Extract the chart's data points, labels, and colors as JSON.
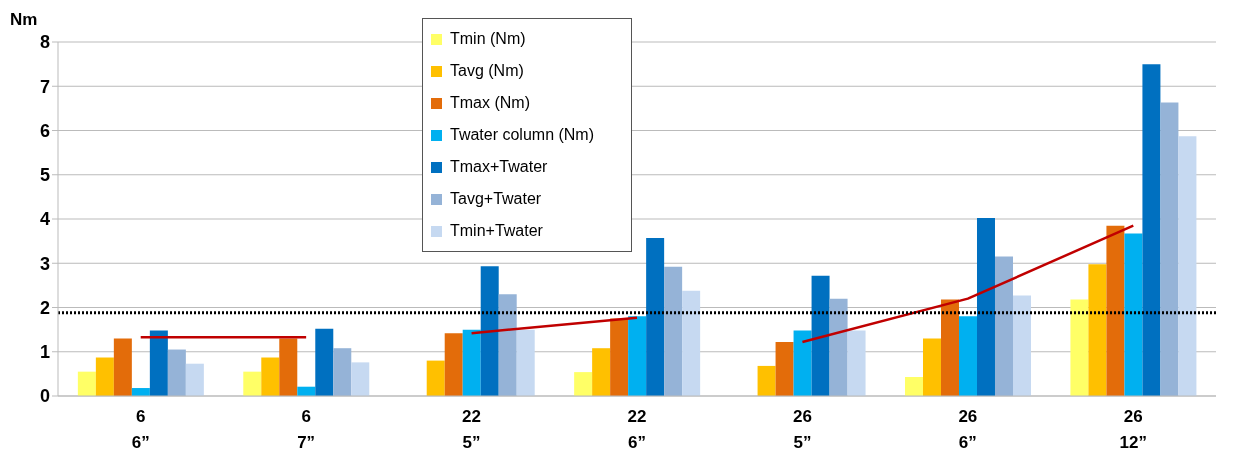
{
  "chart_data": {
    "type": "bar",
    "ylabel": "Nm",
    "categories": [
      "6\n6”",
      "6\n7”",
      "22\n5”",
      "22\n6”",
      "26\n5”",
      "26\n6”",
      "26\n12”"
    ],
    "series": [
      {
        "name": "Tmin (Nm)",
        "color": "#ffff66",
        "values": [
          0.55,
          0.55,
          null,
          0.54,
          null,
          0.43,
          2.18
        ]
      },
      {
        "name": "Tavg (Nm)",
        "color": "#ffc000",
        "values": [
          0.87,
          0.87,
          0.8,
          1.08,
          0.68,
          1.3,
          2.98
        ]
      },
      {
        "name": "Tmax (Nm)",
        "color": "#e36c0a",
        "values": [
          1.3,
          1.3,
          1.42,
          1.75,
          1.22,
          2.18,
          3.85
        ]
      },
      {
        "name": "Twater column (Nm)",
        "color": "#00b0f0",
        "values": [
          0.18,
          0.21,
          1.5,
          1.8,
          1.48,
          1.8,
          3.67
        ]
      },
      {
        "name": "Tmax+Twater",
        "color": "#0070c0",
        "values": [
          1.48,
          1.52,
          2.93,
          3.57,
          2.72,
          4.02,
          7.5
        ]
      },
      {
        "name": "Tavg+Twater",
        "color": "#95b3d7",
        "values": [
          1.05,
          1.08,
          2.3,
          2.92,
          2.2,
          3.15,
          6.63
        ]
      },
      {
        "name": "Tmin+Twater",
        "color": "#c6d9f1",
        "values": [
          0.73,
          0.76,
          1.5,
          2.38,
          1.48,
          2.27,
          5.87
        ]
      },
      {
        "type": "line",
        "color": "#c00000",
        "values": [
          1.33,
          1.33,
          null,
          null,
          null,
          null,
          null
        ]
      },
      {
        "type": "line",
        "color": "#c00000",
        "values": [
          null,
          null,
          1.42,
          1.77,
          null,
          null,
          null
        ]
      },
      {
        "type": "line",
        "color": "#c00000",
        "values": [
          null,
          null,
          null,
          null,
          1.22,
          2.2,
          3.85
        ]
      }
    ],
    "ylim": [
      0,
      8
    ],
    "yticks": [
      0,
      1,
      2,
      3,
      4,
      5,
      6,
      7,
      8
    ],
    "grid": "y",
    "legend": "top",
    "marker": "none",
    "line_style": "solid",
    "ref_lines": [
      {
        "axis": "y",
        "value": 1.88,
        "color": "#000000",
        "line_style": "dotted"
      }
    ]
  }
}
